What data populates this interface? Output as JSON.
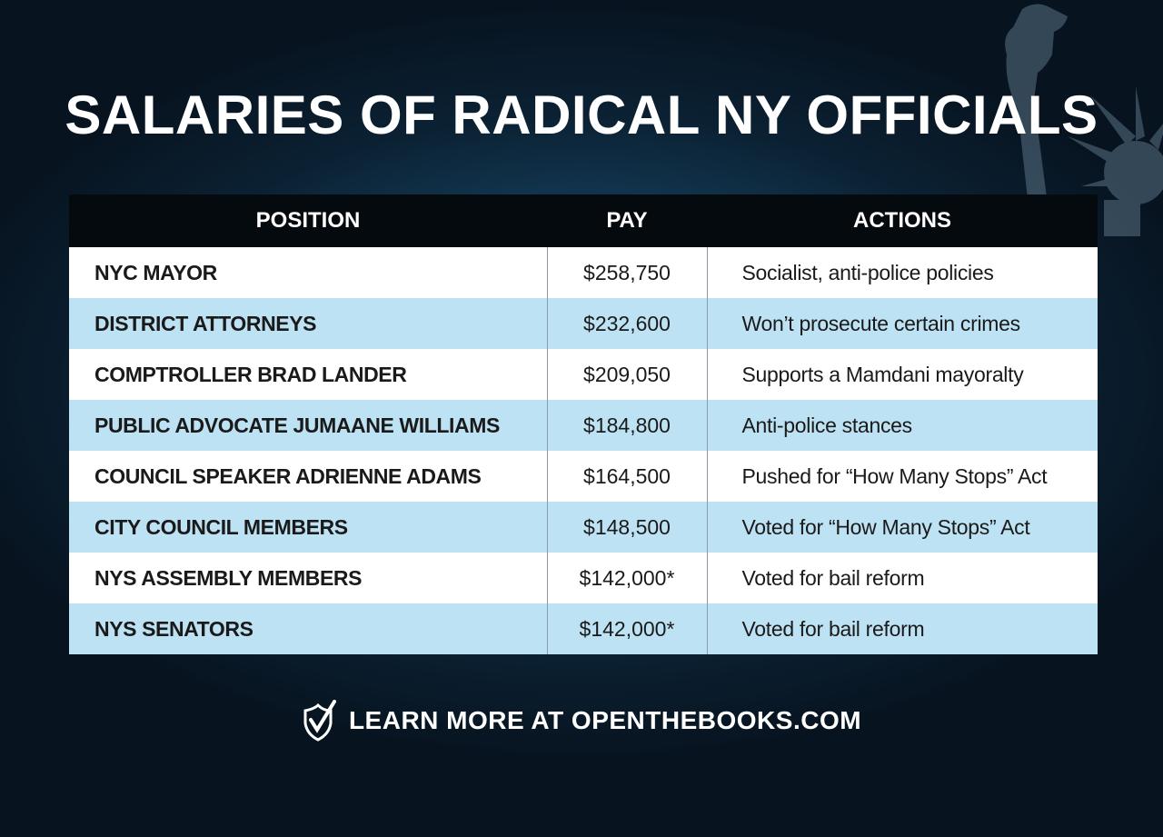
{
  "title": "SALARIES OF RADICAL NY OFFICIALS",
  "colors": {
    "header_bg": "#050a0f",
    "row_alt": "#bde2f3",
    "background": "#0b2133"
  },
  "chart_data": {
    "type": "table",
    "columns": [
      "POSITION",
      "PAY",
      "ACTIONS"
    ],
    "rows": [
      [
        "NYC MAYOR",
        "$258,750",
        "Socialist, anti-police policies"
      ],
      [
        "DISTRICT ATTORNEYS",
        "$232,600",
        "Won’t prosecute certain crimes"
      ],
      [
        "COMPTROLLER BRAD LANDER",
        "$209,050",
        "Supports a Mamdani mayoralty"
      ],
      [
        "PUBLIC ADVOCATE JUMAANE WILLIAMS",
        "$184,800",
        "Anti-police stances"
      ],
      [
        "COUNCIL SPEAKER ADRIENNE ADAMS",
        "$164,500",
        "Pushed for “How Many Stops” Act"
      ],
      [
        "CITY COUNCIL MEMBERS",
        "$148,500",
        "Voted for “How Many Stops” Act"
      ],
      [
        "NYS ASSEMBLY MEMBERS",
        "$142,000*",
        "Voted for bail reform"
      ],
      [
        "NYS SENATORS",
        "$142,000*",
        "Voted for bail reform"
      ]
    ]
  },
  "footer": {
    "text": "LEARN MORE AT OPENTHEBOOKS.COM",
    "icon": "shield-check-icon"
  },
  "decoration": {
    "icon": "statue-of-liberty-icon"
  }
}
